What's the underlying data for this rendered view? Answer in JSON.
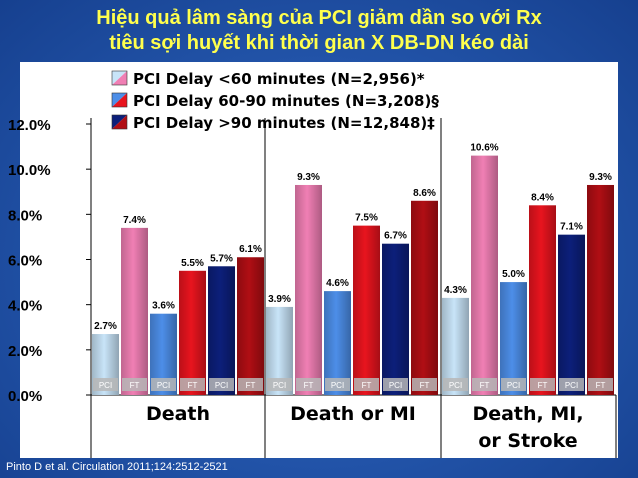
{
  "slide": {
    "title_line1": "Hiệu quả lâm sàng của PCI giảm dần so với Rx",
    "title_line2": "tiêu sợi huyết khi thời gian X DB-DN  kéo dài",
    "citation": "Pinto D et al. Circulation 2011;124:2512-2521"
  },
  "chart_data": {
    "type": "bar",
    "title": "",
    "xlabel": "",
    "ylabel": "",
    "ylim": [
      0,
      12
    ],
    "yticks": [
      "0.0%",
      "2.0%",
      "4.0%",
      "6.0%",
      "8.0%",
      "10.0%",
      "12.0%"
    ],
    "grid": false,
    "legend_position": "top",
    "categories": [
      "Death",
      "Death or MI",
      "Death, MI, or Stroke"
    ],
    "category_lines": [
      [
        "Death"
      ],
      [
        "Death or MI"
      ],
      [
        "Death, MI,",
        "or Stroke"
      ]
    ],
    "bar_types": [
      "PCI",
      "FT",
      "PCI",
      "FT",
      "PCI",
      "FT"
    ],
    "series": [
      {
        "name": "PCI Delay <60 minutes (N=2,956)*",
        "treatment": "PCI",
        "group": "<60",
        "color": "#c8e4f8",
        "values": [
          2.7,
          3.9,
          4.3
        ],
        "labels": [
          "2.7%",
          "3.9%",
          "4.3%"
        ]
      },
      {
        "name": "PCI Delay <60 minutes (N=2,956)*",
        "treatment": "FT",
        "group": "<60",
        "color": "#f07fb4",
        "values": [
          7.4,
          9.3,
          10.6
        ],
        "labels": [
          "7.4%",
          "9.3%",
          "10.6%"
        ]
      },
      {
        "name": "PCI Delay 60-90 minutes (N=3,208)§",
        "treatment": "PCI",
        "group": "60-90",
        "color": "#4d8ee8",
        "values": [
          3.6,
          4.6,
          5.0
        ],
        "labels": [
          "3.6%",
          "4.6%",
          "5.0%"
        ]
      },
      {
        "name": "PCI Delay 60-90 minutes (N=3,208)§",
        "treatment": "FT",
        "group": "60-90",
        "color": "#e8141e",
        "values": [
          5.5,
          7.5,
          8.4
        ],
        "labels": [
          "5.5%",
          "7.5%",
          "8.4%"
        ]
      },
      {
        "name": "PCI Delay >90 minutes (N=12,848)‡",
        "treatment": "PCI",
        "group": ">90",
        "color": "#0c1f7a",
        "values": [
          5.7,
          6.7,
          7.1
        ],
        "labels": [
          "5.7%",
          "6.7%",
          "7.1%"
        ]
      },
      {
        "name": "PCI Delay >90 minutes (N=12,848)‡",
        "treatment": "FT",
        "group": ">90",
        "color": "#b00e14",
        "values": [
          6.1,
          8.6,
          9.3
        ],
        "labels": [
          "6.1%",
          "8.6%",
          "9.3%"
        ]
      }
    ],
    "legend": [
      {
        "label": "PCI Delay <60 minutes (N=2,956)*",
        "color_a": "#c8e4f8",
        "color_b": "#f07fb4"
      },
      {
        "label": "PCI Delay 60-90 minutes (N=3,208)§",
        "color_a": "#4d8ee8",
        "color_b": "#e8141e"
      },
      {
        "label": "PCI Delay >90 minutes (N=12,848)‡",
        "color_a": "#0c1f7a",
        "color_b": "#b00e14"
      }
    ]
  }
}
